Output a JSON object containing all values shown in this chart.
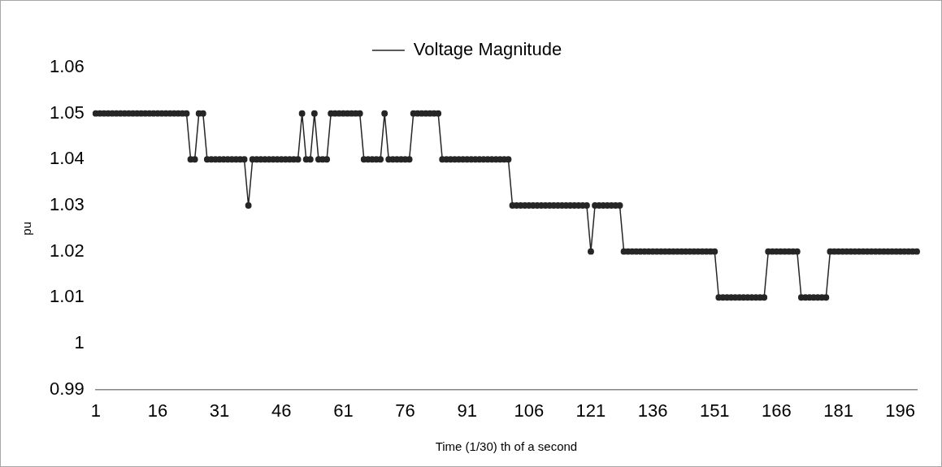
{
  "chart_data": {
    "type": "line",
    "xlabel": "Time (1/30) th of a second",
    "ylabel": "pu",
    "categories": [
      "1",
      null,
      null,
      null,
      null,
      null,
      null,
      null,
      null,
      null,
      null,
      null,
      null,
      null,
      null,
      "16",
      null,
      null,
      null,
      null,
      null,
      null,
      null,
      null,
      null,
      null,
      null,
      null,
      null,
      null,
      "31",
      null,
      null,
      null,
      null,
      null,
      null,
      null,
      null,
      null,
      null,
      null,
      null,
      null,
      null,
      "46",
      null,
      null,
      null,
      null,
      null,
      null,
      null,
      null,
      null,
      null,
      null,
      null,
      null,
      null,
      "61",
      null,
      null,
      null,
      null,
      null,
      null,
      null,
      null,
      null,
      null,
      null,
      null,
      null,
      null,
      "76",
      null,
      null,
      null,
      null,
      null,
      null,
      null,
      null,
      null,
      null,
      null,
      null,
      null,
      null,
      "91",
      null,
      null,
      null,
      null,
      null,
      null,
      null,
      null,
      null,
      null,
      null,
      null,
      null,
      null,
      "106",
      null,
      null,
      null,
      null,
      null,
      null,
      null,
      null,
      null,
      null,
      null,
      null,
      null,
      null,
      "121",
      null,
      null,
      null,
      null,
      null,
      null,
      null,
      null,
      null,
      null,
      null,
      null,
      null,
      null,
      "136",
      null,
      null,
      null,
      null,
      null,
      null,
      null,
      null,
      null,
      null,
      null,
      null,
      null,
      null,
      "151",
      null,
      null,
      null,
      null,
      null,
      null,
      null,
      null,
      null,
      null,
      null,
      null,
      null,
      null,
      "166",
      null,
      null,
      null,
      null,
      null,
      null,
      null,
      null,
      null,
      null,
      null,
      null,
      null,
      null,
      "181",
      null,
      null,
      null,
      null,
      null,
      null,
      null,
      null,
      null,
      null,
      null,
      null,
      null,
      null,
      "196",
      null,
      null,
      null,
      null
    ],
    "series": [
      {
        "name": "Voltage Magnitude",
        "color": "#262626",
        "values": [
          1.05,
          1.05,
          1.05,
          1.05,
          1.05,
          1.05,
          1.05,
          1.05,
          1.05,
          1.05,
          1.05,
          1.05,
          1.05,
          1.05,
          1.05,
          1.05,
          1.05,
          1.05,
          1.05,
          1.05,
          1.05,
          1.05,
          1.05,
          1.04,
          1.04,
          1.05,
          1.05,
          1.04,
          1.04,
          1.04,
          1.04,
          1.04,
          1.04,
          1.04,
          1.04,
          1.04,
          1.04,
          1.03,
          1.04,
          1.04,
          1.04,
          1.04,
          1.04,
          1.04,
          1.04,
          1.04,
          1.04,
          1.04,
          1.04,
          1.04,
          1.05,
          1.04,
          1.04,
          1.05,
          1.04,
          1.04,
          1.04,
          1.05,
          1.05,
          1.05,
          1.05,
          1.05,
          1.05,
          1.05,
          1.05,
          1.04,
          1.04,
          1.04,
          1.04,
          1.04,
          1.05,
          1.04,
          1.04,
          1.04,
          1.04,
          1.04,
          1.04,
          1.05,
          1.05,
          1.05,
          1.05,
          1.05,
          1.05,
          1.05,
          1.04,
          1.04,
          1.04,
          1.04,
          1.04,
          1.04,
          1.04,
          1.04,
          1.04,
          1.04,
          1.04,
          1.04,
          1.04,
          1.04,
          1.04,
          1.04,
          1.04,
          1.03,
          1.03,
          1.03,
          1.03,
          1.03,
          1.03,
          1.03,
          1.03,
          1.03,
          1.03,
          1.03,
          1.03,
          1.03,
          1.03,
          1.03,
          1.03,
          1.03,
          1.03,
          1.03,
          1.02,
          1.03,
          1.03,
          1.03,
          1.03,
          1.03,
          1.03,
          1.03,
          1.02,
          1.02,
          1.02,
          1.02,
          1.02,
          1.02,
          1.02,
          1.02,
          1.02,
          1.02,
          1.02,
          1.02,
          1.02,
          1.02,
          1.02,
          1.02,
          1.02,
          1.02,
          1.02,
          1.02,
          1.02,
          1.02,
          1.02,
          1.01,
          1.01,
          1.01,
          1.01,
          1.01,
          1.01,
          1.01,
          1.01,
          1.01,
          1.01,
          1.01,
          1.01,
          1.02,
          1.02,
          1.02,
          1.02,
          1.02,
          1.02,
          1.02,
          1.02,
          1.01,
          1.01,
          1.01,
          1.01,
          1.01,
          1.01,
          1.01,
          1.02,
          1.02,
          1.02,
          1.02,
          1.02,
          1.02,
          1.02,
          1.02,
          1.02,
          1.02,
          1.02,
          1.02,
          1.02,
          1.02,
          1.02,
          1.02,
          1.02,
          1.02,
          1.02,
          1.02,
          1.02,
          1.02
        ]
      }
    ],
    "ylim": [
      0.99,
      1.06
    ],
    "yticks": [
      0.99,
      1,
      1.01,
      1.02,
      1.03,
      1.04,
      1.05,
      1.06
    ],
    "legend": "top",
    "marker": "circle",
    "line_style": "solid"
  }
}
